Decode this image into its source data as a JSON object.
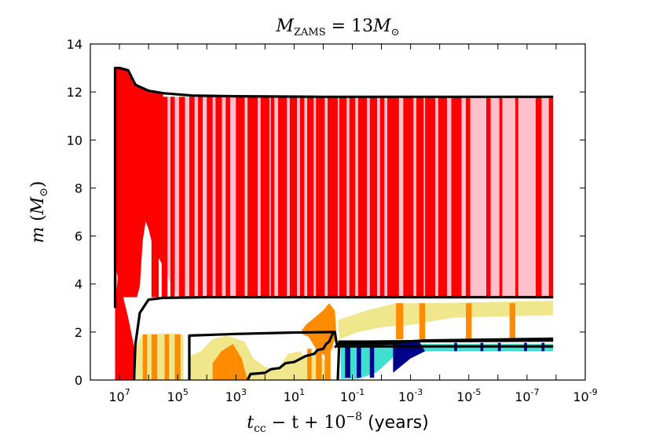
{
  "chart_data": {
    "type": "area",
    "title": "M_ZAMS = 13M_⊙",
    "title_parts": {
      "lhs": "M",
      "lhs_sub": "ZAMS",
      "eq": " = 13",
      "rhs": "M",
      "rhs_sub": "⊙"
    },
    "xlabel_parts": {
      "t": "t",
      "t_sub": "cc",
      "rest": " − t + 10",
      "exp": "−8",
      "unit": " (years)"
    },
    "ylabel_parts": {
      "m": "m",
      "open": " (",
      "M": "M",
      "sub": "⊙",
      "close": ")"
    },
    "x_axis": {
      "scale": "log",
      "reversed": true,
      "xlim": [
        100000000.0,
        1e-09
      ],
      "tick_values": [
        7,
        5,
        3,
        1,
        -1,
        -3,
        -5,
        -7,
        -9
      ],
      "tick_labels": [
        {
          "base": "10",
          "exp": "7"
        },
        {
          "base": "10",
          "exp": "5"
        },
        {
          "base": "10",
          "exp": "3"
        },
        {
          "base": "10",
          "exp": "1"
        },
        {
          "base": "10",
          "exp": "-1"
        },
        {
          "base": "10",
          "exp": "-3"
        },
        {
          "base": "10",
          "exp": "-5"
        },
        {
          "base": "10",
          "exp": "-7"
        },
        {
          "base": "10",
          "exp": "-9"
        }
      ]
    },
    "y_axis": {
      "ylim": [
        0,
        14
      ],
      "tick_values": [
        0,
        2,
        4,
        6,
        8,
        10,
        12,
        14
      ],
      "tick_labels": [
        "0",
        "2",
        "4",
        "6",
        "8",
        "10",
        "12",
        "14"
      ]
    },
    "colors": {
      "convective_envelope": "#ff0000",
      "semiconvective": "#ffc0cb",
      "burning_orange": "#ff8c00",
      "burning_khaki": "#f0e68c",
      "burning_cyan": "#40e0d0",
      "burning_navy": "#00008b",
      "boundary": "#000000"
    },
    "series": [
      {
        "name": "total mass",
        "points": [
          [
            7.15,
            3.0
          ],
          [
            7.15,
            13.0
          ],
          [
            7.0,
            13.0
          ],
          [
            6.7,
            12.9
          ],
          [
            6.45,
            12.3
          ],
          [
            6.0,
            12.05
          ],
          [
            5.5,
            11.95
          ],
          [
            4.5,
            11.85
          ],
          [
            3.0,
            11.82
          ],
          [
            0,
            11.8
          ],
          [
            -3,
            11.8
          ],
          [
            -7.9,
            11.8
          ]
        ]
      },
      {
        "name": "He core boundary",
        "points": [
          [
            6.5,
            0.0
          ],
          [
            6.45,
            1.5
          ],
          [
            6.3,
            2.8
          ],
          [
            6.0,
            3.35
          ],
          [
            5.5,
            3.42
          ],
          [
            4,
            3.45
          ],
          [
            0,
            3.45
          ],
          [
            -7.9,
            3.45
          ]
        ]
      },
      {
        "name": "CO core boundary",
        "points": [
          [
            2.6,
            0.0
          ],
          [
            2.5,
            0.25
          ],
          [
            2.0,
            0.3
          ],
          [
            1.8,
            0.45
          ],
          [
            1.5,
            0.5
          ],
          [
            1.3,
            0.7
          ],
          [
            1.0,
            0.75
          ],
          [
            0.6,
            1.0
          ],
          [
            0.3,
            1.1
          ],
          [
            0.2,
            1.25
          ],
          [
            0.0,
            1.3
          ],
          [
            -0.1,
            1.5
          ],
          [
            -0.2,
            1.6
          ],
          [
            -0.35,
            2.0
          ],
          [
            -0.4,
            2.0
          ],
          [
            -0.45,
            1.6
          ],
          [
            -0.5,
            1.4
          ],
          [
            -7.9,
            1.4
          ]
        ]
      },
      {
        "name": "O core boundary",
        "points": [
          [
            4.6,
            0.0
          ],
          [
            4.6,
            1.85
          ],
          [
            3.0,
            1.92
          ],
          [
            1.0,
            1.98
          ],
          [
            -0.35,
            2.0
          ]
        ]
      },
      {
        "name": "Si core boundary",
        "points": [
          [
            -0.5,
            0.0
          ],
          [
            -0.55,
            1.6
          ],
          [
            -1.5,
            1.6
          ],
          [
            -3.5,
            1.62
          ],
          [
            -7.9,
            1.65
          ]
        ]
      },
      {
        "name": "Fe core boundary",
        "points": [
          [
            -0.4,
            1.35
          ],
          [
            -0.5,
            1.5
          ],
          [
            -1.5,
            1.5
          ],
          [
            -2.5,
            1.52
          ],
          [
            -2.8,
            1.6
          ],
          [
            -3.5,
            1.65
          ],
          [
            -7.9,
            1.72
          ]
        ]
      }
    ]
  }
}
